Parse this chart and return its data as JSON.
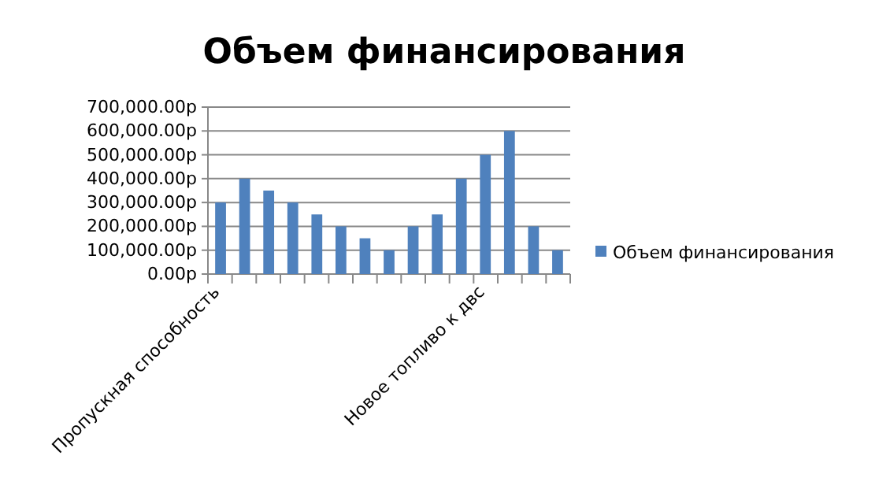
{
  "chart_data": {
    "type": "bar",
    "title": "Объем финансирования",
    "categories": [
      "Пропускная способность",
      null,
      null,
      null,
      null,
      null,
      null,
      null,
      null,
      null,
      null,
      "Новое топливо к двс",
      null,
      null,
      null
    ],
    "series": [
      {
        "name": "Объем финансирования",
        "color": "#4f81bd",
        "values": [
          300000,
          400000,
          350000,
          300000,
          250000,
          200000,
          150000,
          100000,
          200000,
          250000,
          400000,
          500000,
          600000,
          200000,
          100000
        ]
      }
    ],
    "ylim": [
      0,
      700000
    ],
    "yticks": [
      {
        "value": 0,
        "label": "0.00р"
      },
      {
        "value": 100000,
        "label": "100,000.00р"
      },
      {
        "value": 200000,
        "label": "200,000.00р"
      },
      {
        "value": 300000,
        "label": "300,000.00р"
      },
      {
        "value": 400000,
        "label": "400,000.00р"
      },
      {
        "value": 500000,
        "label": "500,000.00р"
      },
      {
        "value": 600000,
        "label": "600,000.00р"
      },
      {
        "value": 700000,
        "label": "700,000.00р"
      }
    ],
    "grid": "y",
    "legend": "right"
  }
}
